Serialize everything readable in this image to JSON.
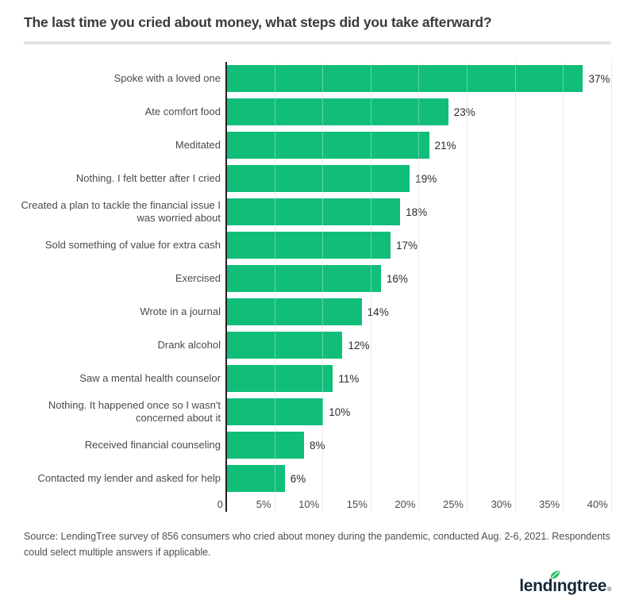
{
  "title": "The last time you cried about money, what steps did you take afterward?",
  "chart_data": {
    "type": "bar",
    "orientation": "horizontal",
    "categories": [
      "Spoke with a loved one",
      "Ate comfort food",
      "Meditated",
      "Nothing. I felt better after I cried",
      "Created a plan to tackle the financial issue I was worried about",
      "Sold something of value for extra cash",
      "Exercised",
      "Wrote in a journal",
      "Drank alcohol",
      "Saw a mental health counselor",
      "Nothing. It happened once so I wasn't concerned about it",
      "Received financial counseling",
      "Contacted my lender and asked for help"
    ],
    "values": [
      37,
      23,
      21,
      19,
      18,
      17,
      16,
      14,
      12,
      11,
      10,
      8,
      6
    ],
    "value_labels": [
      "37%",
      "23%",
      "21%",
      "19%",
      "18%",
      "17%",
      "16%",
      "14%",
      "12%",
      "11%",
      "10%",
      "8%",
      "6%"
    ],
    "x_ticks": [
      "0",
      "5%",
      "10%",
      "15%",
      "20%",
      "25%",
      "30%",
      "35%",
      "40%"
    ],
    "xlim": [
      0,
      40
    ],
    "xlabel": "",
    "ylabel": "",
    "grid": true,
    "legend_position": "none",
    "bar_color": "#10be7a"
  },
  "source": {
    "text": "Source: LendingTree survey of 856 consumers who cried about money during the pandemic, conducted Aug. 2-6, 2021. Respondents could select multiple answers if applicable."
  },
  "logo": {
    "text": "lendingtree",
    "trademark": "®",
    "text_color": "#152838",
    "leaf_color": "#2abd64"
  },
  "colors": {
    "bar": "#10be7a",
    "axis_line": "#1f1f1f",
    "gridline": "#dedede",
    "title_text": "#3a3a3a",
    "label_text": "#4a4a4a",
    "value_text": "#2b2b2b",
    "divider": "#e4e4e4",
    "background": "#ffffff"
  }
}
